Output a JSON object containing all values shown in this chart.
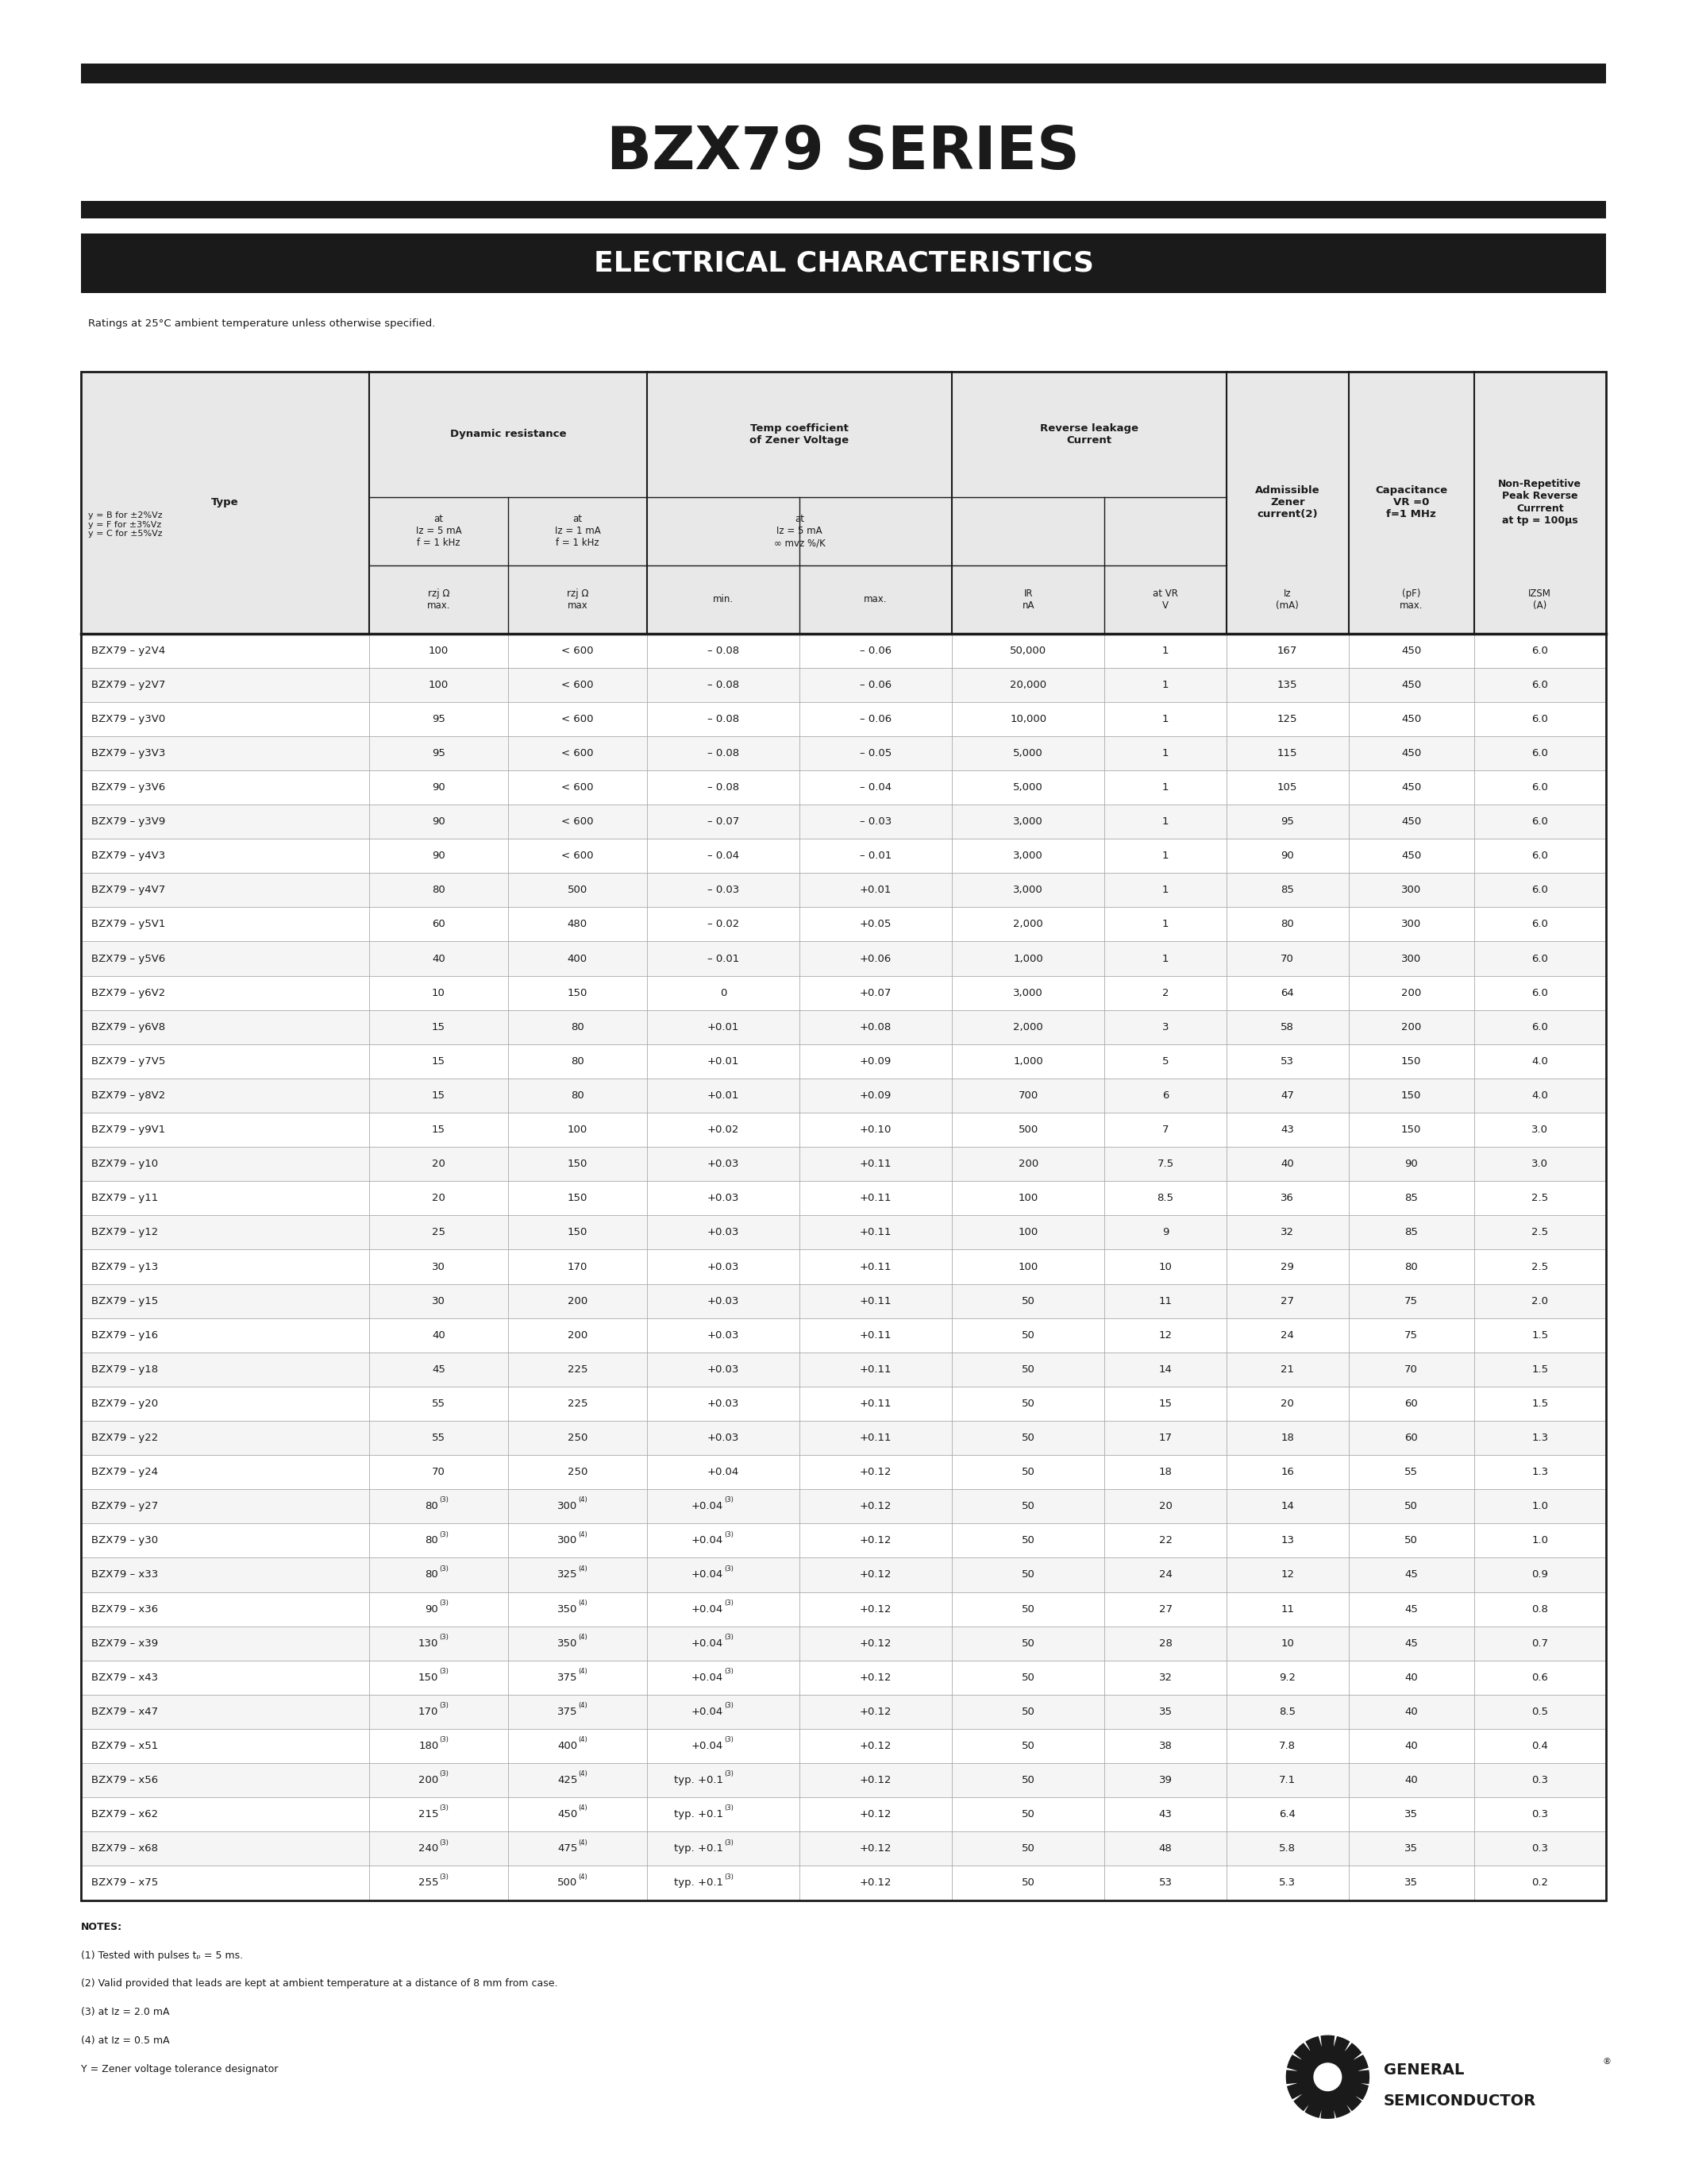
{
  "title": "BZX79 SERIES",
  "subtitle": "ELECTRICAL CHARACTERISTICS",
  "ratings_text": "Ratings at 25°C ambient temperature unless otherwise specified.",
  "rows": [
    [
      "BZX79 – y2V4",
      "100",
      "< 600",
      "– 0.08",
      "– 0.06",
      "50,000",
      "1",
      "167",
      "450",
      "6.0"
    ],
    [
      "BZX79 – y2V7",
      "100",
      "< 600",
      "– 0.08",
      "– 0.06",
      "20,000",
      "1",
      "135",
      "450",
      "6.0"
    ],
    [
      "BZX79 – y3V0",
      "95",
      "< 600",
      "– 0.08",
      "– 0.06",
      "10,000",
      "1",
      "125",
      "450",
      "6.0"
    ],
    [
      "BZX79 – y3V3",
      "95",
      "< 600",
      "– 0.08",
      "– 0.05",
      "5,000",
      "1",
      "115",
      "450",
      "6.0"
    ],
    [
      "BZX79 – y3V6",
      "90",
      "< 600",
      "– 0.08",
      "– 0.04",
      "5,000",
      "1",
      "105",
      "450",
      "6.0"
    ],
    [
      "BZX79 – y3V9",
      "90",
      "< 600",
      "– 0.07",
      "– 0.03",
      "3,000",
      "1",
      "95",
      "450",
      "6.0"
    ],
    [
      "BZX79 – y4V3",
      "90",
      "< 600",
      "– 0.04",
      "– 0.01",
      "3,000",
      "1",
      "90",
      "450",
      "6.0"
    ],
    [
      "BZX79 – y4V7",
      "80",
      "500",
      "– 0.03",
      "+0.01",
      "3,000",
      "1",
      "85",
      "300",
      "6.0"
    ],
    [
      "BZX79 – y5V1",
      "60",
      "480",
      "– 0.02",
      "+0.05",
      "2,000",
      "1",
      "80",
      "300",
      "6.0"
    ],
    [
      "BZX79 – y5V6",
      "40",
      "400",
      "– 0.01",
      "+0.06",
      "1,000",
      "1",
      "70",
      "300",
      "6.0"
    ],
    [
      "BZX79 – y6V2",
      "10",
      "150",
      "0",
      "+0.07",
      "3,000",
      "2",
      "64",
      "200",
      "6.0"
    ],
    [
      "BZX79 – y6V8",
      "15",
      "80",
      "+0.01",
      "+0.08",
      "2,000",
      "3",
      "58",
      "200",
      "6.0"
    ],
    [
      "BZX79 – y7V5",
      "15",
      "80",
      "+0.01",
      "+0.09",
      "1,000",
      "5",
      "53",
      "150",
      "4.0"
    ],
    [
      "BZX79 – y8V2",
      "15",
      "80",
      "+0.01",
      "+0.09",
      "700",
      "6",
      "47",
      "150",
      "4.0"
    ],
    [
      "BZX79 – y9V1",
      "15",
      "100",
      "+0.02",
      "+0.10",
      "500",
      "7",
      "43",
      "150",
      "3.0"
    ],
    [
      "BZX79 – y10",
      "20",
      "150",
      "+0.03",
      "+0.11",
      "200",
      "7.5",
      "40",
      "90",
      "3.0"
    ],
    [
      "BZX79 – y11",
      "20",
      "150",
      "+0.03",
      "+0.11",
      "100",
      "8.5",
      "36",
      "85",
      "2.5"
    ],
    [
      "BZX79 – y12",
      "25",
      "150",
      "+0.03",
      "+0.11",
      "100",
      "9",
      "32",
      "85",
      "2.5"
    ],
    [
      "BZX79 – y13",
      "30",
      "170",
      "+0.03",
      "+0.11",
      "100",
      "10",
      "29",
      "80",
      "2.5"
    ],
    [
      "BZX79 – y15",
      "30",
      "200",
      "+0.03",
      "+0.11",
      "50",
      "11",
      "27",
      "75",
      "2.0"
    ],
    [
      "BZX79 – y16",
      "40",
      "200",
      "+0.03",
      "+0.11",
      "50",
      "12",
      "24",
      "75",
      "1.5"
    ],
    [
      "BZX79 – y18",
      "45",
      "225",
      "+0.03",
      "+0.11",
      "50",
      "14",
      "21",
      "70",
      "1.5"
    ],
    [
      "BZX79 – y20",
      "55",
      "225",
      "+0.03",
      "+0.11",
      "50",
      "15",
      "20",
      "60",
      "1.5"
    ],
    [
      "BZX79 – y22",
      "55",
      "250",
      "+0.03",
      "+0.11",
      "50",
      "17",
      "18",
      "60",
      "1.3"
    ],
    [
      "BZX79 – y24",
      "70",
      "250",
      "+0.04",
      "+0.12",
      "50",
      "18",
      "16",
      "55",
      "1.3"
    ],
    [
      "BZX79 – y27",
      "80(3)",
      "300(4)",
      "+0.04(3)",
      "+0.12",
      "50",
      "20",
      "14",
      "50",
      "1.0"
    ],
    [
      "BZX79 – y30",
      "80(3)",
      "300(4)",
      "+0.04(3)",
      "+0.12",
      "50",
      "22",
      "13",
      "50",
      "1.0"
    ],
    [
      "BZX79 – x33",
      "80(3)",
      "325(4)",
      "+0.04(3)",
      "+0.12",
      "50",
      "24",
      "12",
      "45",
      "0.9"
    ],
    [
      "BZX79 – x36",
      "90(3)",
      "350(4)",
      "+0.04(3)",
      "+0.12",
      "50",
      "27",
      "11",
      "45",
      "0.8"
    ],
    [
      "BZX79 – x39",
      "130(3)",
      "350(4)",
      "+0.04(3)",
      "+0.12",
      "50",
      "28",
      "10",
      "45",
      "0.7"
    ],
    [
      "BZX79 – x43",
      "150(3)",
      "375(4)",
      "+0.04(3)",
      "+0.12",
      "50",
      "32",
      "9.2",
      "40",
      "0.6"
    ],
    [
      "BZX79 – x47",
      "170(3)",
      "375(4)",
      "+0.04(3)",
      "+0.12",
      "50",
      "35",
      "8.5",
      "40",
      "0.5"
    ],
    [
      "BZX79 – x51",
      "180(3)",
      "400(4)",
      "+0.04(3)",
      "+0.12",
      "50",
      "38",
      "7.8",
      "40",
      "0.4"
    ],
    [
      "BZX79 – x56",
      "200(3)",
      "425(4)",
      "typ. +0.1(3)",
      "+0.12",
      "50",
      "39",
      "7.1",
      "40",
      "0.3"
    ],
    [
      "BZX79 – x62",
      "215(3)",
      "450(4)",
      "typ. +0.1(3)",
      "+0.12",
      "50",
      "43",
      "6.4",
      "35",
      "0.3"
    ],
    [
      "BZX79 – x68",
      "240(3)",
      "475(4)",
      "typ. +0.1(3)",
      "+0.12",
      "50",
      "48",
      "5.8",
      "35",
      "0.3"
    ],
    [
      "BZX79 – x75",
      "255(3)",
      "500(4)",
      "typ. +0.1(3)",
      "+0.12",
      "50",
      "53",
      "5.3",
      "35",
      "0.2"
    ]
  ],
  "superscript_cols": [
    1,
    2,
    3
  ],
  "notes": [
    [
      "NOTES:",
      true
    ],
    [
      "(1) Tested with pulses t",
      false
    ],
    [
      "(2) Valid provided that leads are kept at ambient temperature at a distance of 8 mm from case.",
      false
    ],
    [
      "(3) at Iz = 2.0 mA",
      false
    ],
    [
      "(4) at Iz = 0.5 mA",
      false
    ],
    [
      "Y = Zener voltage tolerance designator",
      false
    ]
  ],
  "bg_color": "#ffffff",
  "text_color": "#1a1a1a",
  "dark_color": "#1a1a1a",
  "light_gray": "#f0f0f0"
}
